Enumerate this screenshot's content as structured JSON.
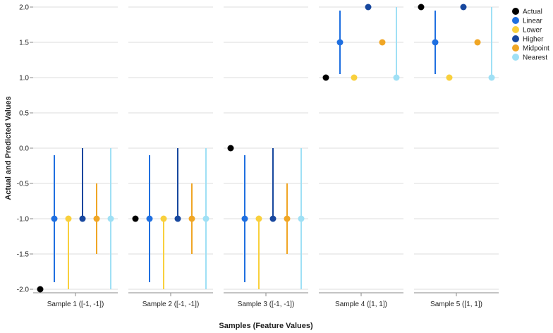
{
  "chart_data": {
    "type": "scatter",
    "xlabel": "Samples (Feature Values)",
    "ylabel": "Actual and Predicted Values",
    "ylim": [
      -2.0,
      2.0
    ],
    "yticks": [
      "2.0",
      "1.5",
      "1.0",
      "0.5",
      "0.0",
      "-0.5",
      "-1.0",
      "-1.5",
      "-2.0"
    ],
    "grid": true,
    "legend_position": "right",
    "facets": [
      "Sample 1 ([-1, -1])",
      "Sample 2 ([-1, -1])",
      "Sample 3 ([-1, -1])",
      "Sample 4 ([1, 1])",
      "Sample 5 ([1, 1])"
    ],
    "series": [
      {
        "name": "Actual",
        "color": "#000000",
        "values": [
          -2.0,
          -1.0,
          0.0,
          1.0,
          2.0
        ],
        "low": [
          null,
          null,
          null,
          null,
          null
        ],
        "high": [
          null,
          null,
          null,
          null,
          null
        ]
      },
      {
        "name": "Linear",
        "color": "#1f6fe0",
        "values": [
          -1.0,
          -1.0,
          -1.0,
          1.5,
          1.5
        ],
        "low": [
          -1.9,
          -1.9,
          -1.9,
          1.05,
          1.05
        ],
        "high": [
          -0.1,
          -0.1,
          -0.1,
          1.95,
          1.95
        ]
      },
      {
        "name": "Lower",
        "color": "#f9d03c",
        "values": [
          -1.0,
          -1.0,
          -1.0,
          1.0,
          1.0
        ],
        "low": [
          -2.0,
          -2.0,
          -2.0,
          null,
          null
        ],
        "high": [
          -1.0,
          -1.0,
          -1.0,
          null,
          null
        ]
      },
      {
        "name": "Higher",
        "color": "#17479e",
        "values": [
          -1.0,
          -1.0,
          -1.0,
          2.0,
          2.0
        ],
        "low": [
          -1.0,
          -1.0,
          -1.0,
          null,
          null
        ],
        "high": [
          0.0,
          0.0,
          0.0,
          null,
          null
        ]
      },
      {
        "name": "Midpoint",
        "color": "#f0a625",
        "values": [
          -1.0,
          -1.0,
          -1.0,
          1.5,
          1.5
        ],
        "low": [
          -1.5,
          -1.5,
          -1.5,
          null,
          null
        ],
        "high": [
          -0.5,
          -0.5,
          -0.5,
          null,
          null
        ]
      },
      {
        "name": "Nearest",
        "color": "#9fe0f5",
        "values": [
          -1.0,
          -1.0,
          -1.0,
          1.0,
          1.0
        ],
        "low": [
          -2.0,
          -2.0,
          -2.0,
          1.0,
          1.0
        ],
        "high": [
          0.0,
          0.0,
          0.0,
          2.0,
          2.0
        ]
      }
    ]
  }
}
